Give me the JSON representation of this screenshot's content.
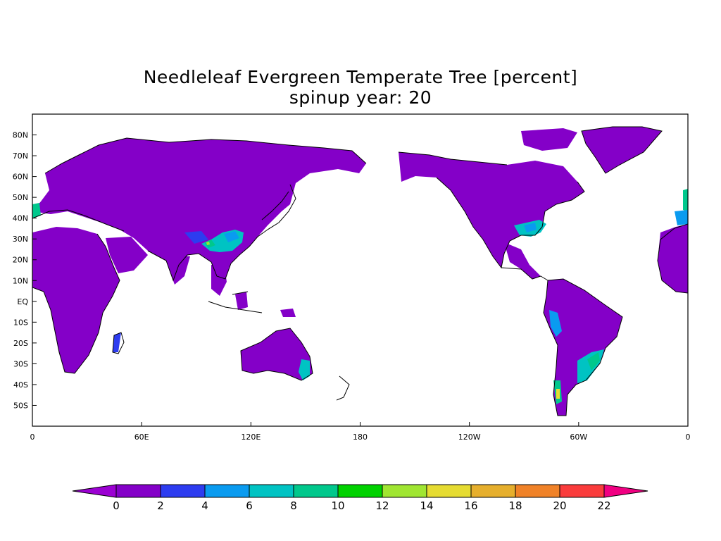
{
  "title": "Needleleaf Evergreen Temperate Tree [percent]",
  "subtitle": "spinup year: 20",
  "map": {
    "projection": "cylindrical equidistant",
    "lon_range": [
      0,
      360
    ],
    "lat_range": [
      -60,
      90
    ],
    "lat_ticks": [
      "80N",
      "70N",
      "60N",
      "50N",
      "40N",
      "30N",
      "20N",
      "10N",
      "EQ",
      "10S",
      "20S",
      "30S",
      "40S",
      "50S"
    ],
    "lon_ticks": [
      "0",
      "60E",
      "120E",
      "180",
      "120W",
      "60W",
      "0"
    ]
  },
  "colorbar": {
    "labels": [
      "0",
      "2",
      "4",
      "6",
      "8",
      "10",
      "12",
      "14",
      "16",
      "18",
      "20",
      "22"
    ],
    "colors": [
      "#9b00d2",
      "#8400c8",
      "#2d3cf0",
      "#0a9bf0",
      "#00c3c3",
      "#00c88c",
      "#00d200",
      "#a0e632",
      "#e6dc32",
      "#e6af2d",
      "#f08228",
      "#fa3c3c",
      "#f00082"
    ]
  }
}
